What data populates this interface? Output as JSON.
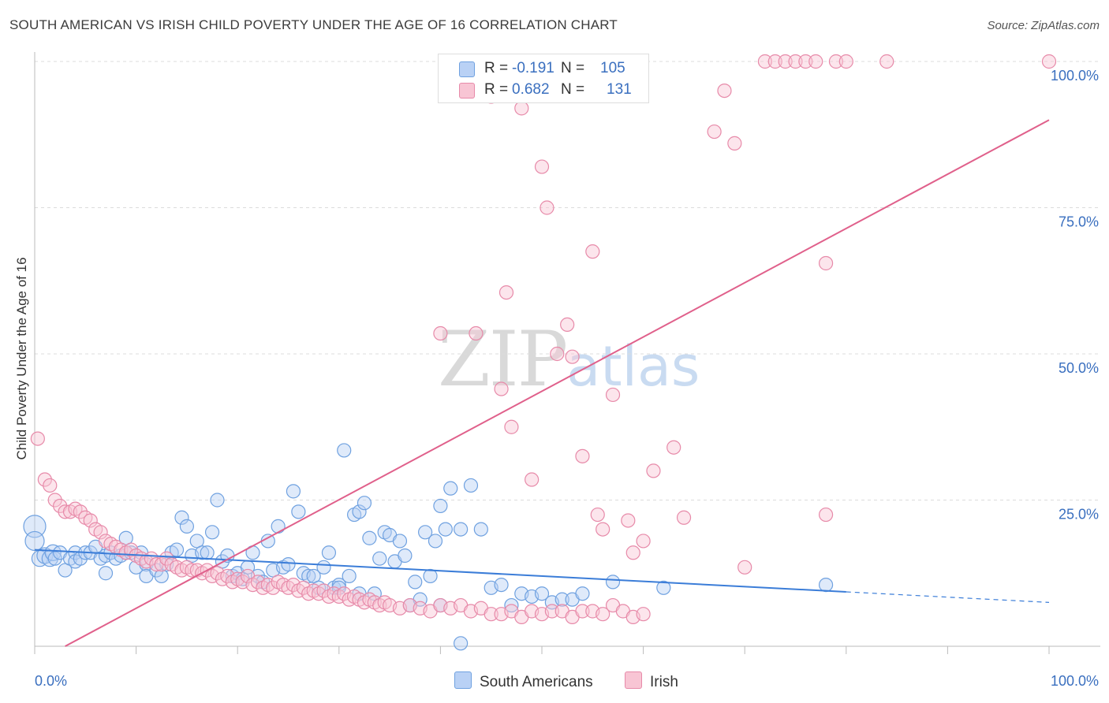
{
  "header": {
    "title": "SOUTH AMERICAN VS IRISH CHILD POVERTY UNDER THE AGE OF 16 CORRELATION CHART",
    "source": "Source: ZipAtlas.com"
  },
  "watermark": {
    "zip": "ZIP",
    "atlas": "atlas"
  },
  "stats": [
    {
      "r_label": "R =",
      "r_value": "-0.191",
      "n_label": "N =",
      "n_value": "105",
      "color": "#6fa1e0",
      "fill": "#b9d1f5"
    },
    {
      "r_label": "R =",
      "r_value": "0.682",
      "n_label": "N =",
      "n_value": "131",
      "color": "#e78aa9",
      "fill": "#f8c5d4"
    }
  ],
  "legend": [
    {
      "label": "South Americans",
      "color": "#6fa1e0",
      "fill": "#b9d1f5"
    },
    {
      "label": "Irish",
      "color": "#e78aa9",
      "fill": "#f8c5d4"
    }
  ],
  "chart_data": {
    "type": "scatter",
    "title": "SOUTH AMERICAN VS IRISH CHILD POVERTY UNDER THE AGE OF 16 CORRELATION CHART",
    "xlabel": "",
    "ylabel": "Child Poverty Under the Age of 16",
    "xlim": [
      0,
      100
    ],
    "ylim": [
      0,
      100
    ],
    "x_ticks_labels": [
      "0.0%",
      "100.0%"
    ],
    "y_ticks": [
      25,
      50,
      75,
      100
    ],
    "y_ticks_labels": [
      "25.0%",
      "50.0%",
      "75.0%",
      "100.0%"
    ],
    "grid": true,
    "legend_position": "bottom",
    "series": [
      {
        "name": "South Americans",
        "color": "#3b7dd8",
        "fill": "#b9d1f5",
        "trend": {
          "x0": 0,
          "y0": 16.5,
          "x1": 80,
          "y1": 9.3,
          "dash_x1": 100,
          "dash_y1": 7.5
        },
        "points": [
          [
            0,
            20.5
          ],
          [
            0,
            18
          ],
          [
            0.5,
            15
          ],
          [
            1,
            15.5
          ],
          [
            1.5,
            15
          ],
          [
            1.8,
            16
          ],
          [
            2,
            15
          ],
          [
            2.5,
            16
          ],
          [
            3,
            13
          ],
          [
            3.5,
            15
          ],
          [
            4,
            16
          ],
          [
            4,
            14.5
          ],
          [
            4.5,
            15
          ],
          [
            5,
            16
          ],
          [
            5.5,
            16
          ],
          [
            6,
            17
          ],
          [
            6.5,
            15
          ],
          [
            7,
            15.5
          ],
          [
            7,
            12.5
          ],
          [
            7.5,
            16
          ],
          [
            8,
            15
          ],
          [
            8.5,
            15.5
          ],
          [
            9,
            18.5
          ],
          [
            9,
            16
          ],
          [
            9.5,
            16
          ],
          [
            10,
            13.5
          ],
          [
            10.5,
            16
          ],
          [
            11,
            14
          ],
          [
            11,
            12
          ],
          [
            12,
            13
          ],
          [
            12.5,
            12
          ],
          [
            13,
            14
          ],
          [
            13.5,
            16
          ],
          [
            14,
            16.5
          ],
          [
            14.5,
            22
          ],
          [
            15,
            20.5
          ],
          [
            15.5,
            15.5
          ],
          [
            16,
            18
          ],
          [
            16.5,
            16
          ],
          [
            17,
            16
          ],
          [
            17.5,
            19.5
          ],
          [
            18,
            25
          ],
          [
            18.5,
            14.5
          ],
          [
            19,
            15.5
          ],
          [
            19.5,
            12
          ],
          [
            20,
            12.5
          ],
          [
            20.5,
            11.5
          ],
          [
            21,
            13.5
          ],
          [
            21.5,
            16
          ],
          [
            22,
            12
          ],
          [
            22.5,
            11
          ],
          [
            23,
            18
          ],
          [
            23.5,
            13
          ],
          [
            24,
            20.5
          ],
          [
            24.5,
            13.5
          ],
          [
            25,
            14
          ],
          [
            25.5,
            26.5
          ],
          [
            26,
            23
          ],
          [
            26.5,
            12.5
          ],
          [
            27,
            12
          ],
          [
            27.5,
            12
          ],
          [
            28,
            10
          ],
          [
            28.5,
            13.5
          ],
          [
            29,
            16
          ],
          [
            29.5,
            10
          ],
          [
            30,
            10.5
          ],
          [
            30.5,
            33.5
          ],
          [
            31,
            12
          ],
          [
            31.5,
            22.5
          ],
          [
            32,
            23
          ],
          [
            32.5,
            24.5
          ],
          [
            33,
            18.5
          ],
          [
            33.5,
            9
          ],
          [
            34,
            15
          ],
          [
            34.5,
            19.5
          ],
          [
            35,
            19
          ],
          [
            35.5,
            14.5
          ],
          [
            36,
            18
          ],
          [
            36.5,
            15.5
          ],
          [
            37,
            7
          ],
          [
            37.5,
            11
          ],
          [
            38,
            8
          ],
          [
            38.5,
            19.5
          ],
          [
            39,
            12
          ],
          [
            39.5,
            18
          ],
          [
            40,
            24
          ],
          [
            40.5,
            20
          ],
          [
            41,
            27
          ],
          [
            42,
            20
          ],
          [
            43,
            27.5
          ],
          [
            44,
            20
          ],
          [
            45,
            10
          ],
          [
            46,
            10.5
          ],
          [
            47,
            7
          ],
          [
            48,
            9
          ],
          [
            49,
            8.5
          ],
          [
            50,
            9
          ],
          [
            51,
            7.5
          ],
          [
            52,
            8
          ],
          [
            53,
            8
          ],
          [
            54,
            9
          ],
          [
            57,
            11
          ],
          [
            62,
            10
          ],
          [
            78,
            10.5
          ],
          [
            30,
            10
          ],
          [
            40,
            7
          ],
          [
            32,
            9
          ],
          [
            42,
            0.5
          ]
        ]
      },
      {
        "name": "Irish",
        "color": "#e0608b",
        "fill": "#f8c5d4",
        "trend": {
          "x0": 3,
          "y0": 0,
          "x1": 100,
          "y1": 90
        },
        "points": [
          [
            0.3,
            35.5
          ],
          [
            1,
            28.5
          ],
          [
            1.5,
            27.5
          ],
          [
            2,
            25
          ],
          [
            2.5,
            24
          ],
          [
            3,
            23
          ],
          [
            3.5,
            23
          ],
          [
            4,
            23.5
          ],
          [
            4.5,
            23
          ],
          [
            5,
            22
          ],
          [
            5.5,
            21.5
          ],
          [
            6,
            20
          ],
          [
            6.5,
            19.5
          ],
          [
            7,
            18
          ],
          [
            7.5,
            17.5
          ],
          [
            8,
            17
          ],
          [
            8.5,
            16.5
          ],
          [
            9,
            16
          ],
          [
            9.5,
            16.5
          ],
          [
            10,
            15.5
          ],
          [
            10.5,
            15
          ],
          [
            11,
            14.5
          ],
          [
            11.5,
            15
          ],
          [
            12,
            14
          ],
          [
            12.5,
            14
          ],
          [
            13,
            15
          ],
          [
            13.5,
            14
          ],
          [
            14,
            13.5
          ],
          [
            14.5,
            13
          ],
          [
            15,
            13.5
          ],
          [
            15.5,
            13
          ],
          [
            16,
            13
          ],
          [
            16.5,
            12.5
          ],
          [
            17,
            13
          ],
          [
            17.5,
            12
          ],
          [
            18,
            12.5
          ],
          [
            18.5,
            11.5
          ],
          [
            19,
            12
          ],
          [
            19.5,
            11
          ],
          [
            20,
            11.5
          ],
          [
            20.5,
            11
          ],
          [
            21,
            12
          ],
          [
            21.5,
            10.5
          ],
          [
            22,
            11
          ],
          [
            22.5,
            10
          ],
          [
            23,
            10.5
          ],
          [
            23.5,
            10
          ],
          [
            24,
            11
          ],
          [
            24.5,
            10.5
          ],
          [
            25,
            10
          ],
          [
            25.5,
            10.5
          ],
          [
            26,
            9.5
          ],
          [
            26.5,
            10
          ],
          [
            27,
            9
          ],
          [
            27.5,
            9.5
          ],
          [
            28,
            9
          ],
          [
            28.5,
            9.5
          ],
          [
            29,
            8.5
          ],
          [
            29.5,
            9
          ],
          [
            30,
            8.5
          ],
          [
            30.5,
            9
          ],
          [
            31,
            8
          ],
          [
            31.5,
            8.5
          ],
          [
            32,
            8
          ],
          [
            32.5,
            7.5
          ],
          [
            33,
            8
          ],
          [
            33.5,
            7.5
          ],
          [
            34,
            7
          ],
          [
            34.5,
            7.5
          ],
          [
            35,
            7
          ],
          [
            36,
            6.5
          ],
          [
            37,
            7
          ],
          [
            38,
            6.5
          ],
          [
            39,
            6
          ],
          [
            40,
            7
          ],
          [
            41,
            6.5
          ],
          [
            42,
            7
          ],
          [
            43,
            6
          ],
          [
            44,
            6.5
          ],
          [
            45,
            5.5
          ],
          [
            46,
            5.5
          ],
          [
            47,
            6
          ],
          [
            48,
            5
          ],
          [
            49,
            6
          ],
          [
            50,
            5.5
          ],
          [
            51,
            6
          ],
          [
            52,
            6
          ],
          [
            53,
            5
          ],
          [
            54,
            6
          ],
          [
            55,
            6
          ],
          [
            56,
            5.5
          ],
          [
            57,
            7
          ],
          [
            58,
            6
          ],
          [
            59,
            5
          ],
          [
            60,
            5.5
          ],
          [
            40,
            53.5
          ],
          [
            43.5,
            53.5
          ],
          [
            46,
            44
          ],
          [
            46.5,
            60.5
          ],
          [
            47,
            37.5
          ],
          [
            49,
            28.5
          ],
          [
            50,
            82
          ],
          [
            50.5,
            75
          ],
          [
            51.5,
            50
          ],
          [
            52.5,
            55
          ],
          [
            53,
            49.5
          ],
          [
            54,
            32.5
          ],
          [
            55,
            67.5
          ],
          [
            55.5,
            22.5
          ],
          [
            56,
            20
          ],
          [
            57,
            43
          ],
          [
            58.5,
            21.5
          ],
          [
            59,
            16
          ],
          [
            60,
            18
          ],
          [
            61,
            30
          ],
          [
            63,
            34
          ],
          [
            64,
            22
          ],
          [
            67,
            88
          ],
          [
            68,
            95
          ],
          [
            69,
            86
          ],
          [
            70,
            13.5
          ],
          [
            72,
            100
          ],
          [
            73,
            100
          ],
          [
            74,
            100
          ],
          [
            75,
            100
          ],
          [
            76,
            100
          ],
          [
            77,
            100
          ],
          [
            78,
            22.5
          ],
          [
            79,
            100
          ],
          [
            80,
            100
          ],
          [
            84,
            100
          ],
          [
            100,
            100
          ],
          [
            78,
            65.5
          ],
          [
            41,
            100
          ],
          [
            43,
            100
          ],
          [
            45,
            94
          ],
          [
            48,
            92
          ]
        ]
      }
    ]
  }
}
